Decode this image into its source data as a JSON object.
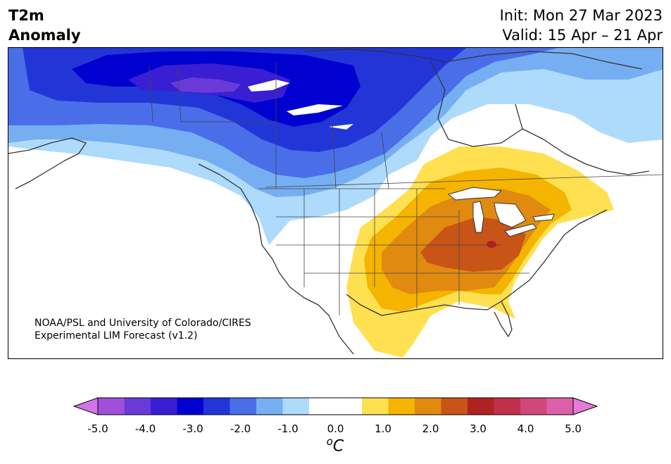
{
  "header": {
    "title_line1": "T2m",
    "title_line2": "Anomaly",
    "init": "Init: Mon 27 Mar 2023",
    "valid": "Valid: 15 Apr – 21 Apr"
  },
  "credit": {
    "line1": "NOAA/PSL and University of Colorado/CIRES",
    "line2": "Experimental LIM Forecast (v1.2)"
  },
  "colorbar": {
    "unit_symbol": "o",
    "unit_letter": "C",
    "min": -5.0,
    "max": 5.0,
    "step": 0.5,
    "extend": "both",
    "tick_labels": [
      "-5.0",
      "-4.0",
      "-3.0",
      "-2.0",
      "-1.0",
      "0.0",
      "1.0",
      "2.0",
      "3.0",
      "4.0",
      "5.0"
    ],
    "colors": [
      "#d274e8",
      "#a050d8",
      "#6a3ad8",
      "#3a1ed4",
      "#0000d0",
      "#2236d8",
      "#4a6ee8",
      "#76aef2",
      "#aedafc",
      "#ffffff",
      "#ffffff",
      "#ffe050",
      "#f4b400",
      "#e08a10",
      "#c85418",
      "#b02222",
      "#c03048",
      "#d04878",
      "#dc60a8",
      "#e67ad8"
    ]
  },
  "colors": {
    "ocean": "#ffffff",
    "coastline": "#333333",
    "cold_extreme": "#6a3ad8",
    "warm_extreme": "#b02222"
  }
}
